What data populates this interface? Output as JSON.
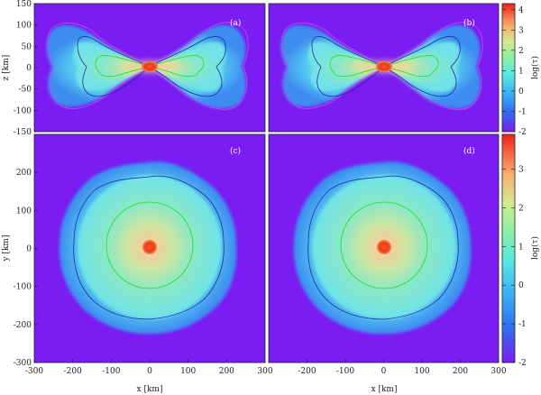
{
  "chart_data": [
    {
      "type": "heatmap",
      "panel_label": "(a)",
      "xlim": [
        -300,
        300
      ],
      "ylim": [
        -150,
        150
      ],
      "ylabel": "z [km]",
      "yticks": [
        -150,
        -100,
        -50,
        0,
        50,
        100,
        150
      ],
      "colorbar": "top"
    },
    {
      "type": "heatmap",
      "panel_label": "(b)",
      "xlim": [
        -300,
        300
      ],
      "ylim": [
        -150,
        150
      ],
      "colorbar": "top"
    },
    {
      "type": "heatmap",
      "panel_label": "(c)",
      "xlim": [
        -300,
        300
      ],
      "ylim": [
        -300,
        300
      ],
      "xlabel": "x [km]",
      "ylabel": "y [km]",
      "xticks": [
        -300,
        -200,
        -100,
        0,
        100,
        200,
        300
      ],
      "yticks": [
        -300,
        -200,
        -100,
        0,
        100,
        200
      ],
      "colorbar": "bottom"
    },
    {
      "type": "heatmap",
      "panel_label": "(d)",
      "xlim": [
        -300,
        300
      ],
      "ylim": [
        -300,
        300
      ],
      "xlabel": "x [km]",
      "xticks": [
        -200,
        -100,
        0,
        100,
        200,
        300
      ],
      "colorbar": "bottom"
    }
  ],
  "colorbars": {
    "top": {
      "label": "log(τ)",
      "range": [
        -2,
        4.3
      ],
      "ticks": [
        4,
        3,
        2,
        1,
        0,
        -1,
        -2
      ]
    },
    "bottom": {
      "label": "log(τ)",
      "range": [
        -2,
        3.9
      ],
      "ticks": [
        3,
        2,
        1,
        0,
        -1,
        -2
      ]
    }
  },
  "colors": {
    "background": "#7a1cf2",
    "contour_inner": "#22dd22",
    "contour_middle": "#1f2f9a",
    "contour_outer": "#cc44ee",
    "core": "#f02a10"
  }
}
